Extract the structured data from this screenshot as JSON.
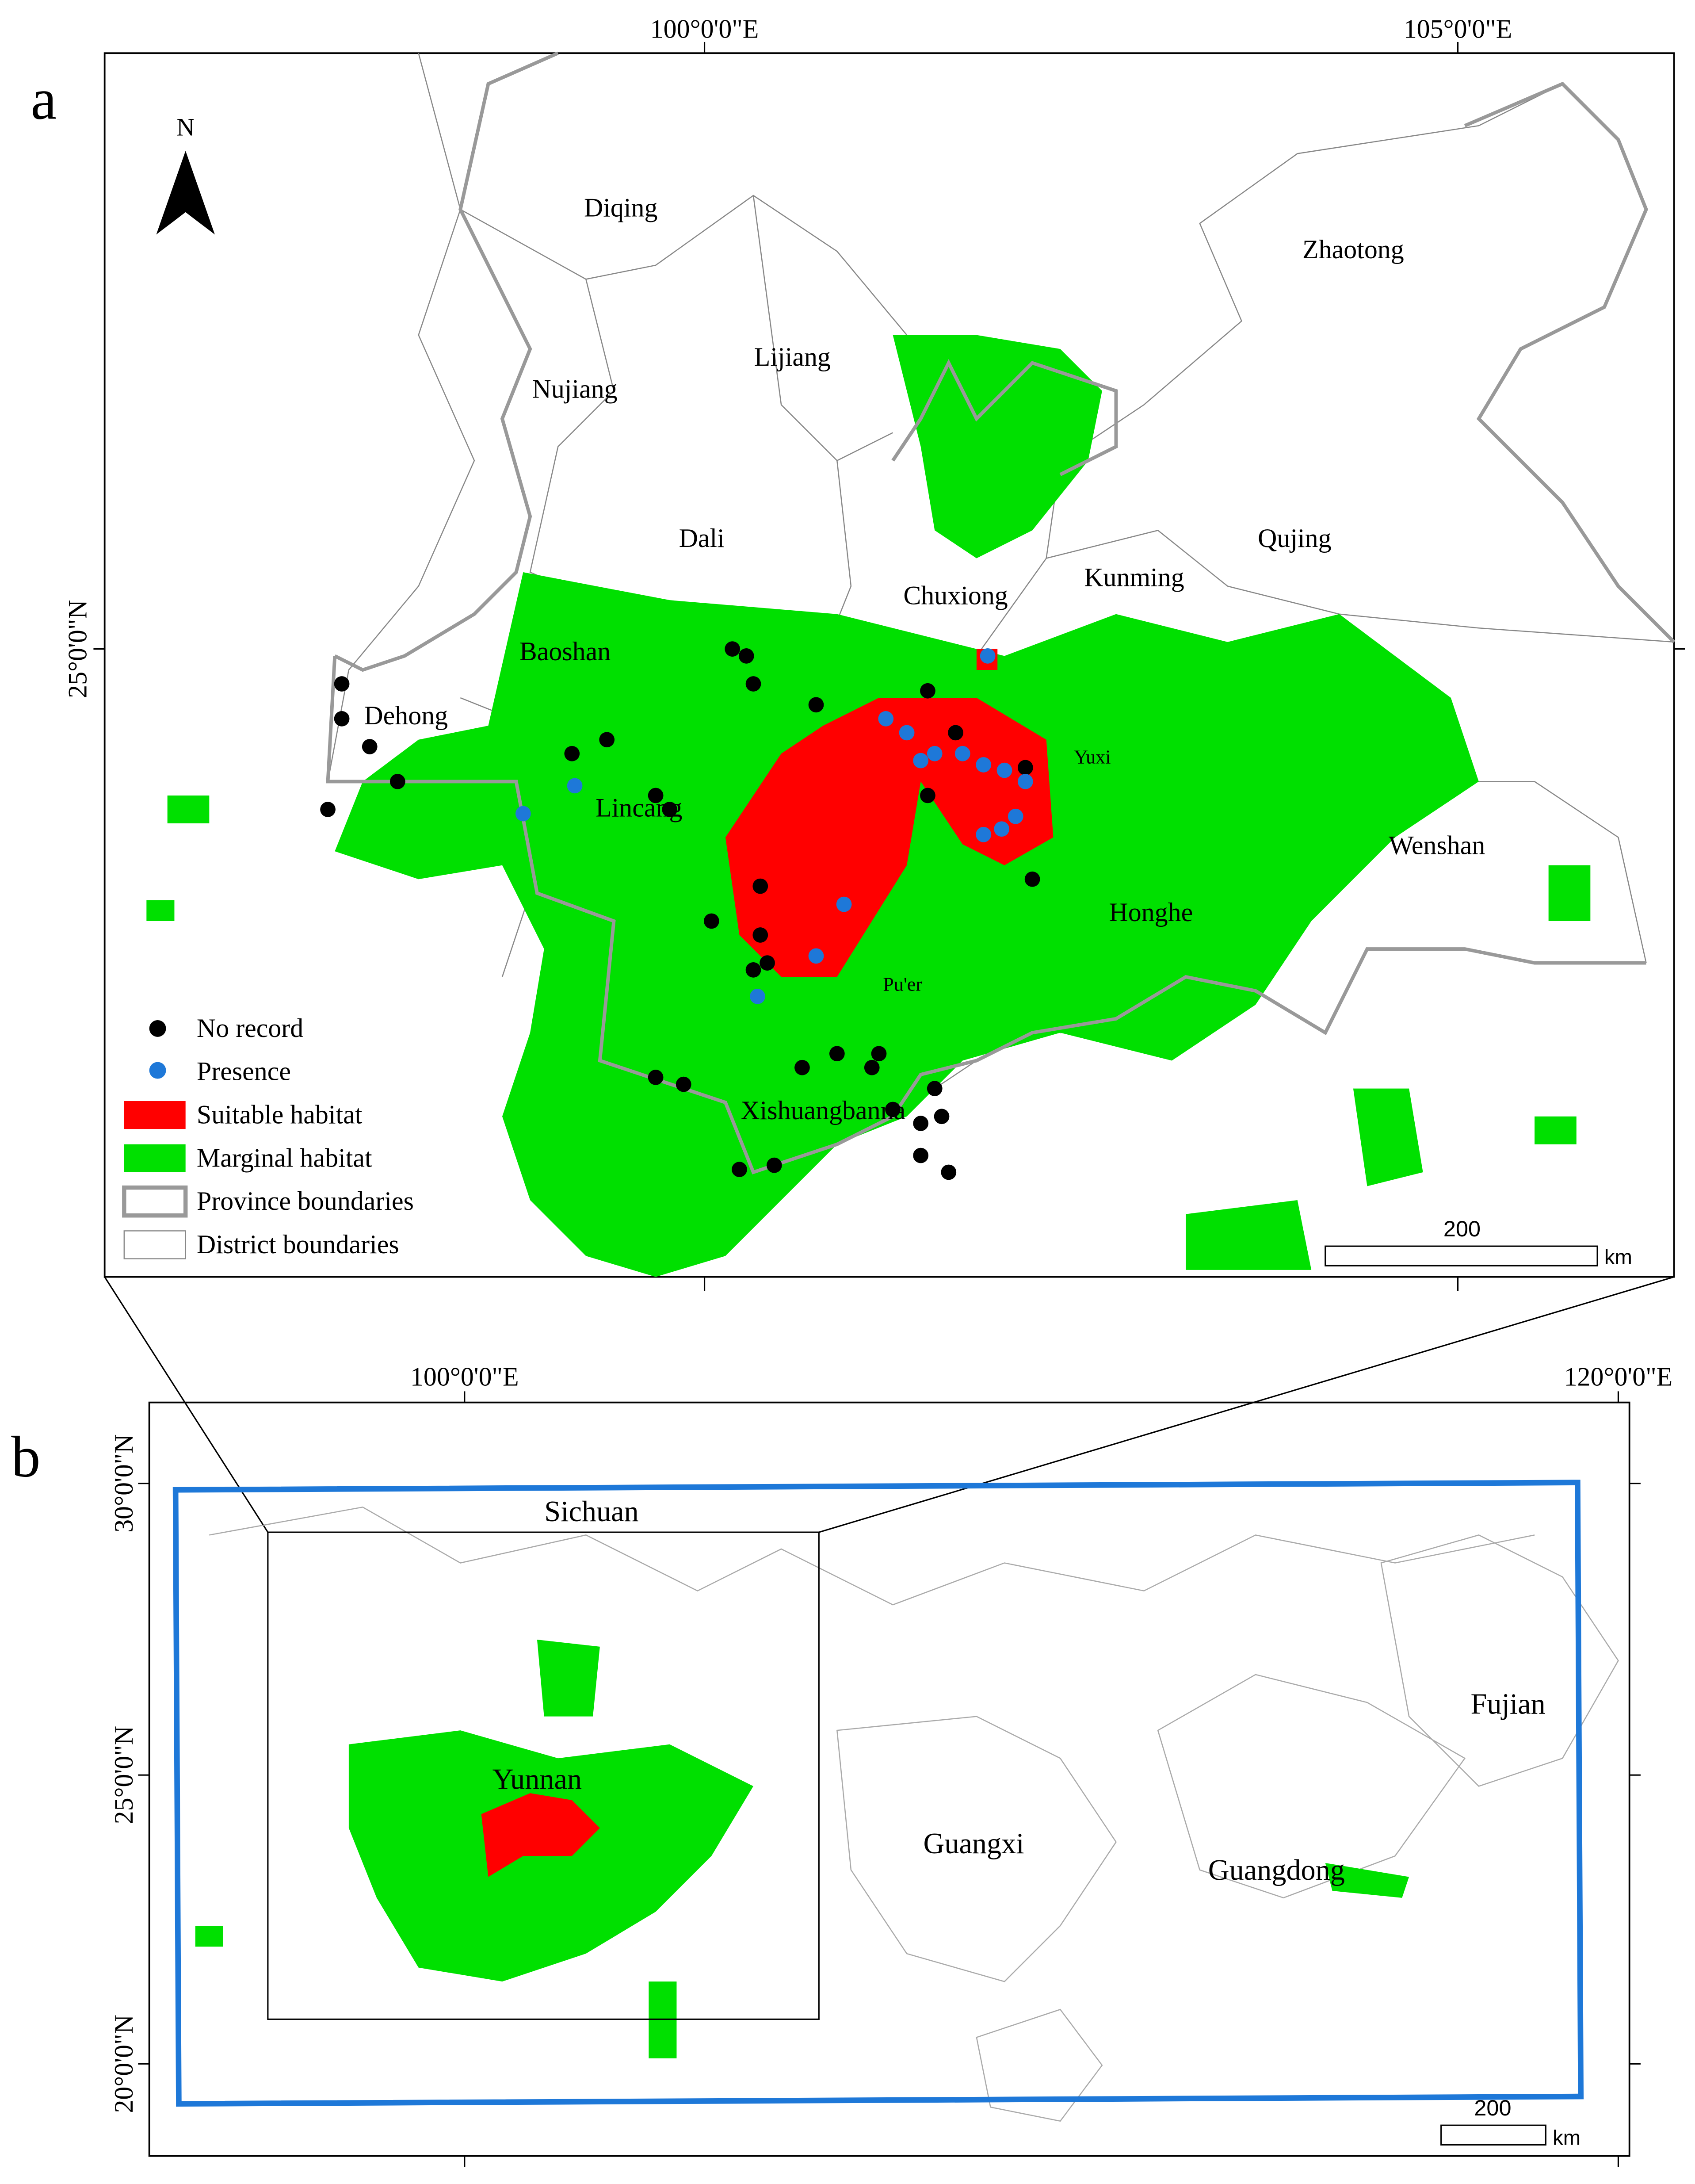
{
  "panel_a": {
    "label": "a",
    "north": "N",
    "lon_labels": [
      "100°0'0\"E",
      "105°0'0\"E"
    ],
    "lat_labels": [
      "25°0'0\"N"
    ],
    "districts": [
      "Diqing",
      "Zhaotong",
      "Lijiang",
      "Nujiang",
      "Dali",
      "Qujing",
      "Chuxiong",
      "Kunming",
      "Baoshan",
      "Dehong",
      "Yuxi",
      "Lincang",
      "Wenshan",
      "Honghe",
      "Pu'er",
      "Xishuangbanna"
    ],
    "legend": [
      "No record",
      "Presence",
      "Suitable habitat",
      "Marginal habitat",
      "Province boundaries",
      "District boundaries"
    ],
    "scale_bar": {
      "value": "200",
      "unit": "km"
    }
  },
  "panel_b": {
    "label": "b",
    "lon_labels": [
      "100°0'0\"E",
      "120°0'0\"E"
    ],
    "lat_labels": [
      "30°0'0\"N",
      "25°0'0\"N",
      "20°0'0\"N"
    ],
    "provinces": [
      "Sichuan",
      "Yunnan",
      "Guangxi",
      "Guangdong",
      "Fujian"
    ],
    "scale_bar": {
      "value": "200",
      "unit": "km"
    }
  }
}
